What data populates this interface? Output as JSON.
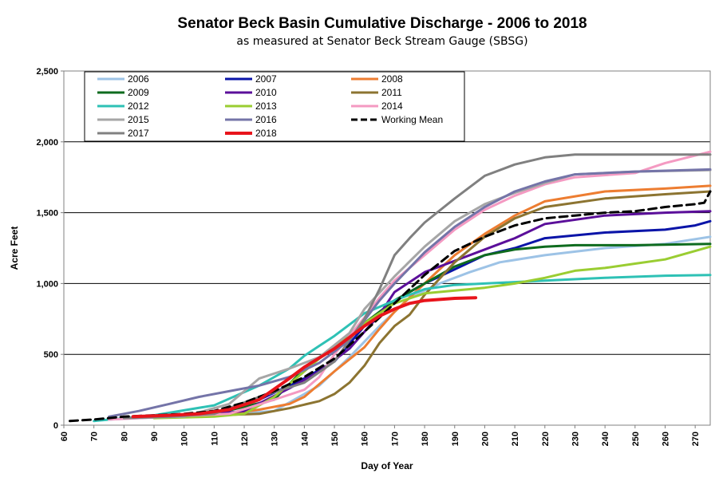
{
  "chart_data": {
    "type": "line",
    "title": "Senator Beck Basin Cumulative Discharge - 2006 to 2018",
    "subtitle": "as measured at Senator Beck Stream Gauge (SBSG)",
    "xlabel": "Day of Year",
    "ylabel": "Acre Feet",
    "xlim": [
      60,
      275
    ],
    "ylim": [
      0,
      2500
    ],
    "x_ticks": [
      "60",
      "70",
      "80",
      "90",
      "100",
      "110",
      "120",
      "130",
      "140",
      "150",
      "160",
      "170",
      "180",
      "190",
      "200",
      "210",
      "220",
      "230",
      "240",
      "250",
      "260",
      "270"
    ],
    "y_ticks": [
      "0",
      "500",
      "1,000",
      "1,500",
      "2,000",
      "2,500"
    ],
    "grid": "horizontal",
    "legend_position": "top-left",
    "series": [
      {
        "name": "2006",
        "color": "#9dc3e6",
        "width": 3,
        "dash": "",
        "x": [
          75,
          90,
          110,
          130,
          145,
          155,
          165,
          175,
          185,
          195,
          205,
          220,
          240,
          260,
          275
        ],
        "y": [
          40,
          55,
          70,
          100,
          280,
          480,
          700,
          900,
          1000,
          1080,
          1150,
          1200,
          1250,
          1280,
          1330
        ]
      },
      {
        "name": "2007",
        "color": "#0a14a8",
        "width": 3,
        "dash": "",
        "x": [
          80,
          95,
          110,
          125,
          140,
          150,
          160,
          170,
          180,
          190,
          200,
          210,
          220,
          240,
          260,
          270,
          275
        ],
        "y": [
          50,
          60,
          80,
          180,
          330,
          450,
          700,
          880,
          1000,
          1100,
          1200,
          1250,
          1320,
          1360,
          1380,
          1410,
          1440
        ]
      },
      {
        "name": "2008",
        "color": "#ed7d31",
        "width": 3,
        "dash": "",
        "x": [
          85,
          100,
          115,
          125,
          135,
          140,
          145,
          150,
          160,
          165,
          170,
          180,
          190,
          200,
          210,
          220,
          240,
          260,
          275
        ],
        "y": [
          60,
          70,
          80,
          110,
          150,
          200,
          290,
          380,
          550,
          680,
          800,
          1000,
          1200,
          1350,
          1480,
          1580,
          1650,
          1670,
          1690
        ]
      },
      {
        "name": "2009",
        "color": "#0e6b1e",
        "width": 3,
        "dash": "",
        "x": [
          90,
          110,
          130,
          140,
          150,
          160,
          170,
          180,
          190,
          200,
          210,
          220,
          230,
          250,
          275
        ],
        "y": [
          60,
          80,
          180,
          400,
          560,
          720,
          880,
          1000,
          1120,
          1200,
          1240,
          1260,
          1270,
          1270,
          1280
        ]
      },
      {
        "name": "2010",
        "color": "#5b0f9a",
        "width": 3,
        "dash": "",
        "x": [
          80,
          100,
          120,
          135,
          145,
          155,
          165,
          170,
          180,
          190,
          200,
          210,
          220,
          240,
          260,
          275
        ],
        "y": [
          50,
          60,
          100,
          260,
          380,
          540,
          780,
          940,
          1080,
          1160,
          1240,
          1320,
          1420,
          1480,
          1500,
          1510
        ]
      },
      {
        "name": "2011",
        "color": "#8c7431",
        "width": 3,
        "dash": "",
        "x": [
          90,
          110,
          125,
          135,
          145,
          150,
          155,
          160,
          165,
          170,
          175,
          180,
          190,
          200,
          210,
          220,
          240,
          260,
          275
        ],
        "y": [
          60,
          70,
          80,
          120,
          170,
          220,
          300,
          420,
          580,
          700,
          780,
          920,
          1150,
          1330,
          1460,
          1540,
          1600,
          1630,
          1650
        ]
      },
      {
        "name": "2012",
        "color": "#2ec1b5",
        "width": 3,
        "dash": "",
        "x": [
          70,
          90,
          110,
          125,
          135,
          140,
          145,
          150,
          155,
          160,
          170,
          180,
          190,
          200,
          220,
          240,
          260,
          275
        ],
        "y": [
          30,
          70,
          140,
          280,
          400,
          490,
          560,
          630,
          710,
          790,
          880,
          960,
          990,
          1000,
          1020,
          1040,
          1055,
          1060
        ]
      },
      {
        "name": "2013",
        "color": "#9acd32",
        "width": 3,
        "dash": "",
        "x": [
          90,
          110,
          120,
          130,
          140,
          150,
          160,
          170,
          180,
          190,
          200,
          210,
          220,
          230,
          240,
          250,
          260,
          270,
          275
        ],
        "y": [
          50,
          60,
          80,
          200,
          380,
          560,
          720,
          860,
          930,
          950,
          970,
          1000,
          1040,
          1090,
          1110,
          1140,
          1170,
          1230,
          1260
        ]
      },
      {
        "name": "2014",
        "color": "#f49ac2",
        "width": 3,
        "dash": "",
        "x": [
          75,
          95,
          115,
          130,
          140,
          145,
          150,
          160,
          165,
          170,
          180,
          190,
          200,
          210,
          220,
          230,
          250,
          260,
          275
        ],
        "y": [
          40,
          60,
          80,
          180,
          250,
          340,
          500,
          760,
          900,
          1020,
          1200,
          1380,
          1520,
          1620,
          1700,
          1750,
          1780,
          1850,
          1930
        ]
      },
      {
        "name": "2015",
        "color": "#a6a6a6",
        "width": 3,
        "dash": "",
        "x": [
          80,
          100,
          115,
          125,
          135,
          145,
          155,
          160,
          170,
          180,
          190,
          200,
          210,
          220,
          230,
          250,
          275
        ],
        "y": [
          50,
          60,
          150,
          330,
          400,
          480,
          650,
          820,
          1050,
          1260,
          1440,
          1560,
          1640,
          1710,
          1770,
          1790,
          1800
        ]
      },
      {
        "name": "2016",
        "color": "#7474a8",
        "width": 3,
        "dash": "",
        "x": [
          75,
          85,
          95,
          105,
          115,
          125,
          135,
          145,
          155,
          160,
          165,
          170,
          180,
          190,
          200,
          210,
          220,
          230,
          250,
          275
        ],
        "y": [
          60,
          100,
          150,
          200,
          240,
          280,
          340,
          440,
          600,
          740,
          880,
          1000,
          1220,
          1400,
          1540,
          1650,
          1720,
          1770,
          1790,
          1805
        ]
      },
      {
        "name": "2017",
        "color": "#808080",
        "width": 3,
        "dash": "",
        "x": [
          80,
          95,
          110,
          125,
          140,
          150,
          155,
          160,
          165,
          170,
          175,
          180,
          190,
          200,
          210,
          220,
          230,
          250,
          275
        ],
        "y": [
          50,
          60,
          80,
          200,
          300,
          450,
          600,
          750,
          960,
          1200,
          1320,
          1430,
          1600,
          1760,
          1840,
          1890,
          1910,
          1910,
          1910
        ]
      },
      {
        "name": "Working Mean",
        "color": "#000000",
        "width": 3,
        "dash": "10,6",
        "x": [
          62,
          70,
          80,
          90,
          100,
          110,
          120,
          130,
          140,
          150,
          160,
          170,
          180,
          190,
          200,
          210,
          220,
          230,
          240,
          250,
          260,
          270,
          273,
          275
        ],
        "y": [
          30,
          40,
          60,
          70,
          80,
          100,
          160,
          240,
          340,
          470,
          660,
          860,
          1060,
          1230,
          1330,
          1410,
          1460,
          1480,
          1500,
          1510,
          1540,
          1560,
          1570,
          1650
        ]
      },
      {
        "name": "2018",
        "color": "#e8141b",
        "width": 4,
        "dash": "",
        "x": [
          83,
          95,
          105,
          115,
          125,
          135,
          140,
          150,
          160,
          165,
          170,
          175,
          180,
          190,
          197
        ],
        "y": [
          60,
          70,
          80,
          110,
          180,
          330,
          410,
          540,
          700,
          770,
          820,
          860,
          880,
          895,
          900
        ]
      }
    ]
  }
}
